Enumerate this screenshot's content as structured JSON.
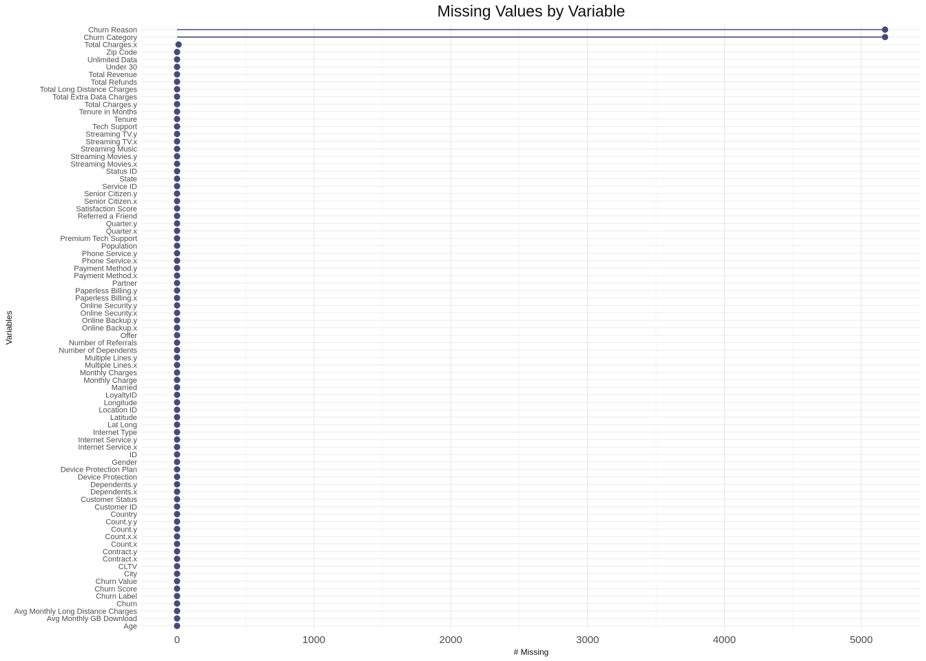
{
  "chart_data": {
    "type": "lollipop",
    "title": "Missing Values by Variable",
    "xlabel": "# Missing",
    "ylabel": "Variables",
    "xlim": [
      0,
      5200
    ],
    "x_ticks": [
      0,
      1000,
      2000,
      3000,
      4000,
      5000
    ],
    "grid": true,
    "point_color": "#484b77",
    "categories": [
      "Churn Reason",
      "Churn Category",
      "Total Charges.x",
      "Zip Code",
      "Unlimited Data",
      "Under 30",
      "Total Revenue",
      "Total Refunds",
      "Total Long Distance Charges",
      "Total Extra Data Charges",
      "Total Charges.y",
      "Tenure in Months",
      "Tenure",
      "Tech Support",
      "Streaming TV.y",
      "Streaming TV.x",
      "Streaming Music",
      "Streaming Movies.y",
      "Streaming Movies.x",
      "Status ID",
      "State",
      "Service ID",
      "Senior Citizen.y",
      "Senior Citizen.x",
      "Satisfaction Score",
      "Referred a Friend",
      "Quarter.y",
      "Quarter.x",
      "Premium Tech Support",
      "Population",
      "Phone Service.y",
      "Phone Service.x",
      "Payment Method.y",
      "Payment Method.x",
      "Partner",
      "Paperless Billing.y",
      "Paperless Billing.x",
      "Online Security.y",
      "Online Security.x",
      "Online Backup.y",
      "Online Backup.x",
      "Offer",
      "Number of Referrals",
      "Number of Dependents",
      "Multiple Lines.y",
      "Multiple Lines.x",
      "Monthly Charges",
      "Monthly Charge",
      "Married",
      "LoyaltyID",
      "Longitude",
      "Location ID",
      "Latitude",
      "Lat Long",
      "Internet Type",
      "Internet Service.y",
      "Internet Service.x",
      "ID",
      "Gender",
      "Device Protection Plan",
      "Device Protection",
      "Dependents.y",
      "Dependents.x",
      "Customer Status",
      "Customer ID",
      "Country",
      "Count.y.y",
      "Count.y",
      "Count.x.x",
      "Count.x",
      "Contract.y",
      "Contract.x",
      "CLTV",
      "City",
      "Churn Value",
      "Churn Score",
      "Churn Label",
      "Churn",
      "Avg Monthly Long Distance Charges",
      "Avg Monthly GB Download",
      "Age"
    ],
    "values": [
      5174,
      5174,
      11,
      0,
      0,
      0,
      0,
      0,
      0,
      0,
      0,
      0,
      0,
      0,
      0,
      0,
      0,
      0,
      0,
      0,
      0,
      0,
      0,
      0,
      0,
      0,
      0,
      0,
      0,
      0,
      0,
      0,
      0,
      0,
      0,
      0,
      0,
      0,
      0,
      0,
      0,
      0,
      0,
      0,
      0,
      0,
      0,
      0,
      0,
      0,
      0,
      0,
      0,
      0,
      0,
      0,
      0,
      0,
      0,
      0,
      0,
      0,
      0,
      0,
      0,
      0,
      0,
      0,
      0,
      0,
      0,
      0,
      0,
      0,
      0,
      0,
      0,
      0,
      0,
      0,
      0
    ]
  }
}
